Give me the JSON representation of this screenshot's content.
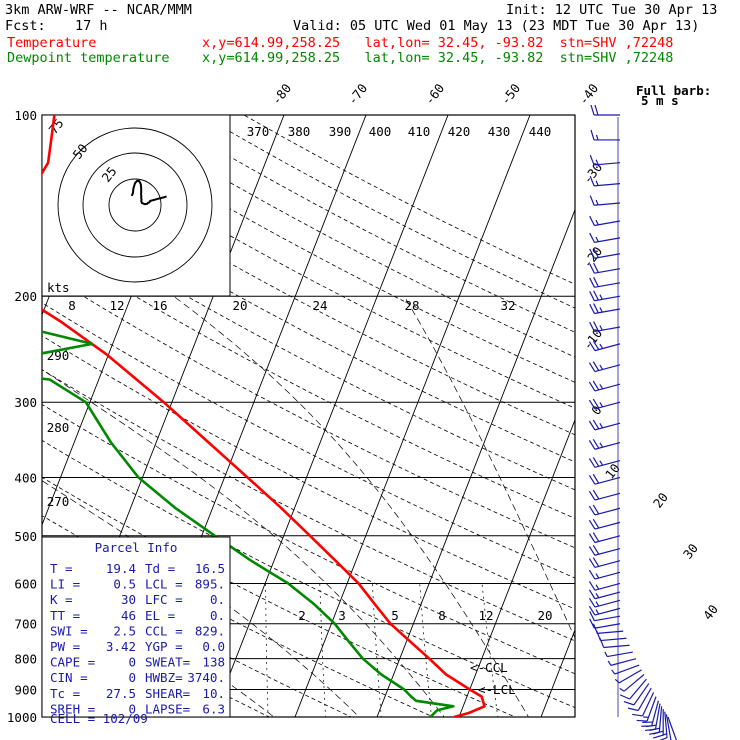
{
  "header": {
    "model": "3km ARW-WRF -- NCAR/MMM",
    "init": "Init: 12 UTC Tue 30 Apr 13",
    "fcst_label": "Fcst:",
    "fcst_value": "17 h",
    "valid": "Valid: 05 UTC Wed 01 May 13 (23 MDT Tue 30 Apr 13)",
    "temp_name": "Temperature",
    "temp_info": "x,y=614.99,258.25   lat,lon= 32.45, -93.82  stn=SHV ,72248",
    "dew_name": "Dewpoint temperature",
    "dew_info": "x,y=614.99,258.25   lat,lon= 32.45, -93.82  stn=SHV ,72248"
  },
  "colors": {
    "temperature": "#ff0000",
    "dewpoint": "#008800",
    "wind": "#1a1aaa",
    "grid": "#000000"
  },
  "chart_data": {
    "type": "line",
    "subtype": "skew-t log-p sounding",
    "y_axis": {
      "label": "pressure (hPa)",
      "ticks": [
        100,
        200,
        300,
        400,
        500,
        600,
        700,
        800,
        900,
        1000
      ]
    },
    "isotherm_labels": [
      "-80",
      "-70",
      "-60",
      "-50",
      "-40",
      "-30",
      "-20",
      "-10",
      "0",
      "10",
      "20",
      "30",
      "40"
    ],
    "theta_labels": [
      "370",
      "380",
      "390",
      "400",
      "410",
      "420",
      "430",
      "440"
    ],
    "theta_left_labels": [
      "290",
      "280",
      "270"
    ],
    "mixing_ratio_labels": [
      "2",
      "3",
      "5",
      "8",
      "12",
      "20"
    ],
    "mixing_ratio_top_labels": [
      "8",
      "12",
      "16",
      "20",
      "24",
      "28",
      "32"
    ],
    "hodograph": {
      "units": "kts",
      "rings": [
        "25",
        "50",
        "75"
      ]
    },
    "annotations": {
      "ccl": "<-CCL",
      "lcl": "<-LCL",
      "barb_legend_1": "Full barb:",
      "barb_legend_2": "5 m s"
    },
    "series": [
      {
        "name": "Temperature",
        "color": "#ff0000",
        "points": [
          [
            1000,
            19.4
          ],
          [
            985,
            21.0
          ],
          [
            960,
            22.6
          ],
          [
            925,
            21.8
          ],
          [
            900,
            20.0
          ],
          [
            850,
            16.4
          ],
          [
            800,
            13.6
          ],
          [
            750,
            10.5
          ],
          [
            700,
            7.2
          ],
          [
            650,
            4.4
          ],
          [
            600,
            1.4
          ],
          [
            550,
            -2.5
          ],
          [
            500,
            -6.8
          ],
          [
            450,
            -11.6
          ],
          [
            400,
            -17.2
          ],
          [
            350,
            -23.6
          ],
          [
            300,
            -31.0
          ],
          [
            250,
            -40.2
          ],
          [
            220,
            -47.5
          ],
          [
            200,
            -53.5
          ],
          [
            180,
            -57.0
          ],
          [
            160,
            -58.0
          ],
          [
            150,
            -58.3
          ],
          [
            140,
            -57.8
          ],
          [
            130,
            -57.0
          ],
          [
            120,
            -56.5
          ],
          [
            110,
            -57.2
          ],
          [
            100,
            -58.0
          ]
        ]
      },
      {
        "name": "Dewpoint temperature",
        "color": "#008800",
        "points": [
          [
            1000,
            16.5
          ],
          [
            975,
            17.0
          ],
          [
            960,
            18.8
          ],
          [
            940,
            14.0
          ],
          [
            925,
            13.2
          ],
          [
            900,
            12.0
          ],
          [
            850,
            8.5
          ],
          [
            800,
            5.5
          ],
          [
            750,
            3.0
          ],
          [
            700,
            0.4
          ],
          [
            650,
            -3.0
          ],
          [
            600,
            -7.2
          ],
          [
            550,
            -12.8
          ],
          [
            500,
            -18.4
          ],
          [
            450,
            -24.5
          ],
          [
            400,
            -30.5
          ],
          [
            350,
            -35.5
          ],
          [
            300,
            -40.5
          ],
          [
            275,
            -46.0
          ],
          [
            265,
            -58.0
          ],
          [
            240,
            -42.5
          ],
          [
            220,
            -55.0
          ],
          [
            210,
            -61.0
          ],
          [
            200,
            -61.5
          ],
          [
            180,
            -64.5
          ],
          [
            160,
            -67.5
          ],
          [
            140,
            -70.5
          ],
          [
            120,
            -74.0
          ],
          [
            110,
            -76.5
          ],
          [
            100,
            -80.0
          ]
        ]
      }
    ],
    "wind_levels_hpa": [
      1000,
      990,
      980,
      970,
      960,
      950,
      940,
      925,
      910,
      895,
      880,
      865,
      850,
      835,
      820,
      800,
      780,
      760,
      740,
      720,
      700,
      680,
      660,
      640,
      620,
      600,
      575,
      550,
      525,
      500,
      475,
      450,
      425,
      400,
      375,
      350,
      325,
      300,
      280,
      260,
      240,
      225,
      210,
      200,
      190,
      180,
      170,
      160,
      150,
      140,
      130,
      120,
      110,
      100
    ],
    "wind_ms": [
      [
        8,
        160
      ],
      [
        10,
        170
      ],
      [
        14,
        175
      ],
      [
        18,
        180
      ],
      [
        20,
        185
      ],
      [
        20,
        190
      ],
      [
        18,
        195
      ],
      [
        15,
        200
      ],
      [
        12,
        205
      ],
      [
        10,
        210
      ],
      [
        9,
        215
      ],
      [
        8,
        220
      ],
      [
        7,
        230
      ],
      [
        6,
        240
      ],
      [
        6,
        250
      ],
      [
        6,
        255
      ],
      [
        7,
        260
      ],
      [
        8,
        265
      ],
      [
        9,
        265
      ],
      [
        10,
        265
      ],
      [
        11,
        260
      ],
      [
        12,
        260
      ],
      [
        13,
        255
      ],
      [
        14,
        255
      ],
      [
        15,
        255
      ],
      [
        16,
        255
      ],
      [
        17,
        255
      ],
      [
        18,
        255
      ],
      [
        19,
        255
      ],
      [
        20,
        255
      ],
      [
        20,
        255
      ],
      [
        21,
        255
      ],
      [
        22,
        255
      ],
      [
        22,
        255
      ],
      [
        23,
        255
      ],
      [
        24,
        255
      ],
      [
        25,
        255
      ],
      [
        26,
        255
      ],
      [
        26,
        255
      ],
      [
        27,
        255
      ],
      [
        27,
        255
      ],
      [
        26,
        260
      ],
      [
        25,
        260
      ],
      [
        24,
        260
      ],
      [
        22,
        260
      ],
      [
        20,
        260
      ],
      [
        18,
        260
      ],
      [
        15,
        260
      ],
      [
        14,
        260
      ],
      [
        14,
        265
      ],
      [
        15,
        265
      ],
      [
        16,
        265
      ],
      [
        17,
        270
      ],
      [
        18,
        270
      ]
    ]
  },
  "parcel_info": {
    "title": "Parcel Info",
    "rows": [
      [
        "T  =",
        "19.4",
        "Td =",
        "16.5"
      ],
      [
        "LI =",
        "0.5",
        "LCL =",
        "895."
      ],
      [
        "K  =",
        "30",
        "LFC =",
        "0."
      ],
      [
        "TT =",
        "46",
        "EL  =",
        "0."
      ],
      [
        "SWI =",
        "2.5",
        "CCL =",
        "829."
      ],
      [
        "PW =",
        "3.42",
        "YGP =",
        "0.0"
      ],
      [
        "CAPE =",
        "0",
        "SWEAT=",
        "138"
      ],
      [
        "CIN =",
        "0",
        "HWBZ=",
        "3740."
      ],
      [
        "Tc =",
        "27.5",
        "SHEAR=",
        "10."
      ],
      [
        "SREH =",
        "0",
        "LAPSE=",
        "6.3"
      ]
    ],
    "cell": "CELL = 102/09"
  }
}
